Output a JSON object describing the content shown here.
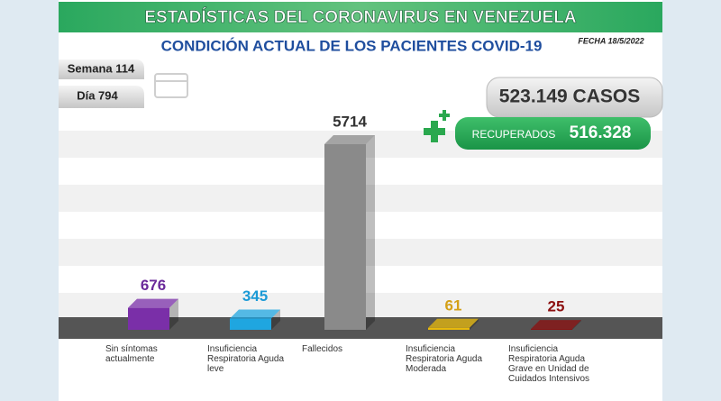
{
  "chart_data": {
    "type": "bar",
    "title": "ESTADÍSTICAS DEL CORONAVIRUS EN VENEZUELA",
    "subtitle": "CONDICIÓN ACTUAL DE LOS PACIENTES COVID-19",
    "date": "FECHA 18/5/2022",
    "week": "Semana 114",
    "day": "Día 794",
    "cases": "523.149 CASOS",
    "recovered_label": "RECUPERADOS",
    "recovered_value": "516.328",
    "categories": [
      "Sin síntomas actualmente",
      "Insuficiencia Respiratoria Aguda leve",
      "Fallecidos",
      "Insuficiencia Respiratoria Aguda Moderada",
      "Insuficiencia Respiratoria Aguda Grave en Unidad de Cuidados Intensivos"
    ],
    "values": [
      676,
      345,
      5714,
      61,
      25
    ],
    "colors": [
      "#7a2fa8",
      "#1fa6e0",
      "#8a8a8a",
      "#e8b90c",
      "#8c1010"
    ],
    "label_colors": [
      "#6a2a9a",
      "#1b9ad6",
      "#333333",
      "#d4a017",
      "#8c1010"
    ]
  }
}
